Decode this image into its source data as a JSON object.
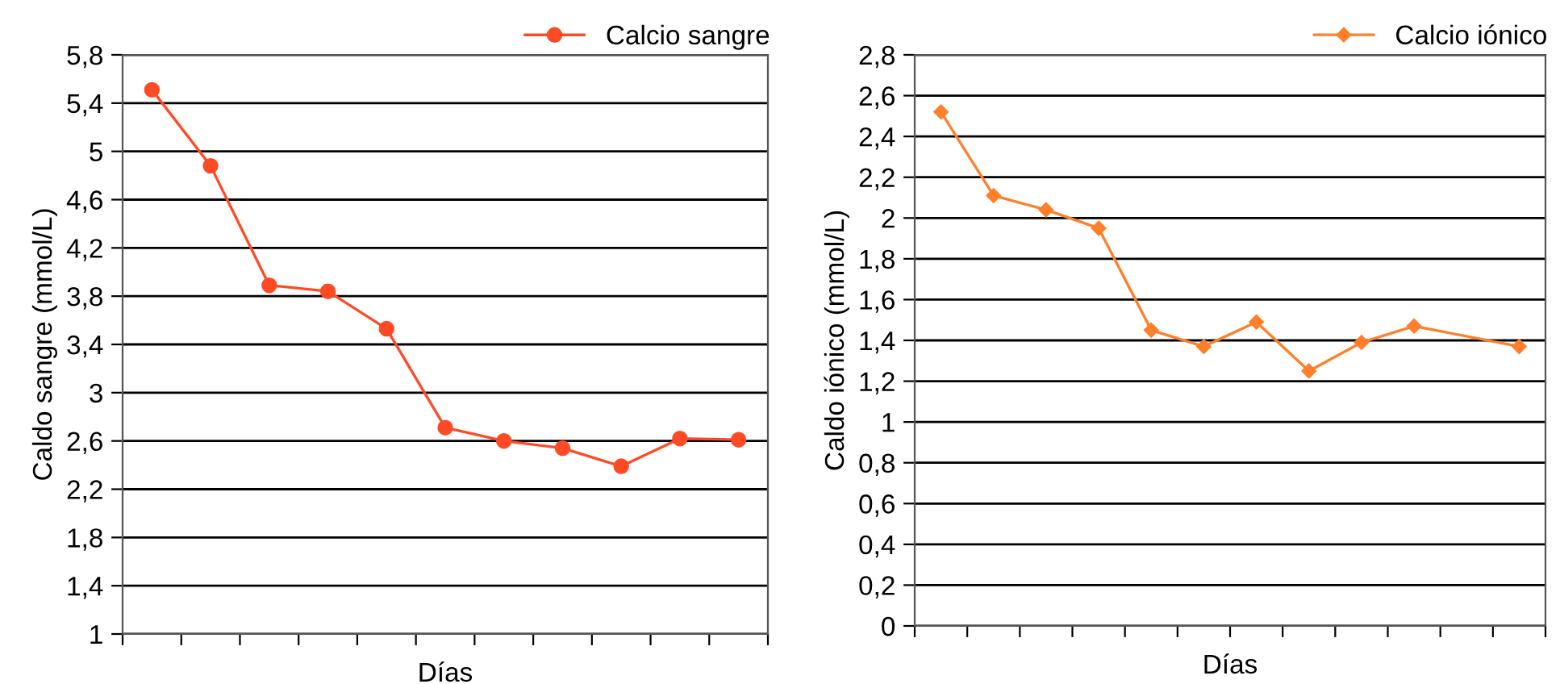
{
  "chart_data": [
    {
      "type": "line",
      "xlabel": "Días",
      "ylabel": "Caldo sangre (mmol/L)",
      "categories": [
        null,
        null,
        null,
        null,
        null,
        null,
        null,
        null,
        null,
        null,
        null
      ],
      "series": [
        {
          "name": "Calcio sangre",
          "color": "#ff4a26",
          "values": [
            5.51,
            4.88,
            3.89,
            3.84,
            3.53,
            2.71,
            2.6,
            2.54,
            2.39,
            2.62,
            2.61
          ]
        }
      ],
      "ylim": [
        1,
        5.8
      ],
      "yticks": [
        {
          "value": 1,
          "label": "1"
        },
        {
          "value": 1.4,
          "label": "1,4"
        },
        {
          "value": 1.8,
          "label": "1,8"
        },
        {
          "value": 2.2,
          "label": "2,2"
        },
        {
          "value": 2.6,
          "label": "2,6"
        },
        {
          "value": 3,
          "label": "3"
        },
        {
          "value": 3.4,
          "label": "3,4"
        },
        {
          "value": 3.8,
          "label": "3,8"
        },
        {
          "value": 4.2,
          "label": "4,2"
        },
        {
          "value": 4.6,
          "label": "4,6"
        },
        {
          "value": 5,
          "label": "5"
        },
        {
          "value": 5.4,
          "label": "5,4"
        },
        {
          "value": 5.8,
          "label": "5,8"
        }
      ],
      "grid": "y",
      "legend": "top right",
      "marker": "circle",
      "line_style": "solid"
    },
    {
      "type": "line",
      "xlabel": "Días",
      "ylabel": "Caldo iónico (mmol/L)",
      "categories": [
        null,
        null,
        null,
        null,
        null,
        null,
        null,
        null,
        null,
        null,
        null,
        null
      ],
      "series": [
        {
          "name": "Calcio iónico",
          "color": "#ff7f2a",
          "values": [
            2.52,
            2.11,
            2.04,
            1.95,
            1.45,
            1.37,
            1.49,
            1.25,
            1.39,
            1.47,
            null,
            1.37
          ]
        }
      ],
      "ylim": [
        0,
        2.8
      ],
      "yticks": [
        {
          "value": 0,
          "label": "0"
        },
        {
          "value": 0.2,
          "label": "0,2"
        },
        {
          "value": 0.4,
          "label": "0,4"
        },
        {
          "value": 0.6,
          "label": "0,6"
        },
        {
          "value": 0.8,
          "label": "0,8"
        },
        {
          "value": 1,
          "label": "1"
        },
        {
          "value": 1.2,
          "label": "1,2"
        },
        {
          "value": 1.4,
          "label": "1,4"
        },
        {
          "value": 1.6,
          "label": "1,6"
        },
        {
          "value": 1.8,
          "label": "1,8"
        },
        {
          "value": 2,
          "label": "2"
        },
        {
          "value": 2.2,
          "label": "2,2"
        },
        {
          "value": 2.4,
          "label": "2,4"
        },
        {
          "value": 2.6,
          "label": "2,6"
        },
        {
          "value": 2.8,
          "label": "2,8"
        }
      ],
      "grid": "y",
      "legend": "top right",
      "marker": "diamond",
      "line_style": "solid"
    }
  ]
}
